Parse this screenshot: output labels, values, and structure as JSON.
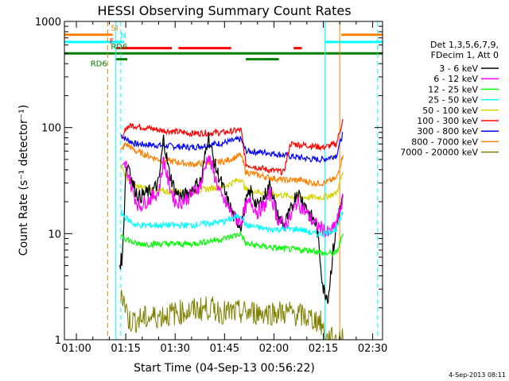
{
  "chart_data": {
    "type": "line",
    "title": "HESSI Observing Summary Count Rates",
    "xlabel": "Start Time (04-Sep-13 00:56:22)",
    "ylabel": "Count Rate (s⁻¹ detector⁻¹)",
    "y_scale": "log",
    "ylim": [
      1,
      1000
    ],
    "xlim": [
      "00:56:22",
      "02:33:00"
    ],
    "x_ticks": [
      "01:00",
      "01:15",
      "01:30",
      "01:45",
      "02:00",
      "02:15",
      "02:30"
    ],
    "y_ticks": [
      "1",
      "10",
      "100",
      "1000"
    ],
    "stamp": "4-Sep-2013 08:11",
    "legend": {
      "placement": "right",
      "header": [
        "Det 1,3,5,6,7,9,",
        "FDecim 1, Att 0"
      ],
      "entries": [
        {
          "label": "3 - 6 keV",
          "color": "#000000"
        },
        {
          "label": "6 - 12 keV",
          "color": "#ff00ff"
        },
        {
          "label": "12 - 25 keV",
          "color": "#00ff00"
        },
        {
          "label": "25 - 50 keV",
          "color": "#00ffff"
        },
        {
          "label": "50 - 100 keV",
          "color": "#d4d400"
        },
        {
          "label": "100 - 300 keV",
          "color": "#ff0000"
        },
        {
          "label": "300 - 800 keV",
          "color": "#0000ff"
        },
        {
          "label": "800 - 7000 keV",
          "color": "#ff8000"
        },
        {
          "label": "7000 - 20000 keV",
          "color": "#808000"
        }
      ]
    },
    "flag_bars": [
      {
        "label": "SI",
        "color": "#ff8000",
        "y": 750,
        "segments": [
          [
            "00:56:22",
            "01:11:00"
          ],
          [
            "02:20:30",
            "02:33:00"
          ]
        ]
      },
      {
        "label": "N",
        "color": "#00ffff",
        "y": 640,
        "segments": [
          [
            "00:56:22",
            "01:14:30"
          ],
          [
            "02:15:30",
            "02:33:00"
          ]
        ]
      },
      {
        "label": "F",
        "color": "#ff0000",
        "y": 560,
        "segments": [
          [
            "01:12:00",
            "01:29:00"
          ],
          [
            "01:31:00",
            "01:47:00"
          ],
          [
            "02:06:00",
            "02:08:30"
          ]
        ]
      },
      {
        "label": "RD6",
        "color": "#008000",
        "y": 500,
        "segments": [
          [
            "00:56:22",
            "02:33:00"
          ]
        ]
      },
      {
        "label": "RD6",
        "color": "#008000",
        "y": 440,
        "segments": [
          [
            "01:12:00",
            "01:15:30"
          ],
          [
            "01:51:30",
            "02:01:30"
          ]
        ]
      }
    ],
    "vertical_markers": [
      {
        "x": "01:09:30",
        "color": "#ff8000",
        "style": "dashed"
      },
      {
        "x": "01:13:30",
        "color": "#00ffff",
        "style": "dashed"
      },
      {
        "x": "01:12:00",
        "color": "#00ffff",
        "style": "solid"
      },
      {
        "x": "02:15:30",
        "color": "#00ffff",
        "style": "solid"
      },
      {
        "x": "02:20:00",
        "color": "#ff8000",
        "style": "solid"
      },
      {
        "x": "02:31:30",
        "color": "#00ffff",
        "style": "dashed"
      }
    ],
    "series": [
      {
        "name": "300 - 800 keV",
        "color": "#0000ff",
        "x": [
          "01:13:30",
          "01:15:00",
          "01:18:00",
          "01:25:00",
          "01:35:00",
          "01:45:00",
          "01:50:00",
          "01:51:30",
          "01:58:00",
          "02:03:00",
          "02:08:00",
          "02:12:00",
          "02:15:00",
          "02:19:00",
          "02:21:00"
        ],
        "y": [
          85,
          78,
          70,
          68,
          65,
          72,
          78,
          60,
          58,
          55,
          52,
          50,
          50,
          55,
          90
        ]
      },
      {
        "name": "100 - 300 keV",
        "color": "#ff0000",
        "x": [
          "01:14:00",
          "01:15:00",
          "01:17:00",
          "01:25:00",
          "01:35:00",
          "01:45:00",
          "01:50:00",
          "01:51:30",
          "01:58:00",
          "02:03:00",
          "02:05:00",
          "02:10:00",
          "02:15:00",
          "02:19:00",
          "02:21:00"
        ],
        "y": [
          75,
          100,
          105,
          95,
          88,
          90,
          95,
          45,
          40,
          38,
          70,
          68,
          65,
          70,
          120
        ]
      },
      {
        "name": "800 - 7000 keV",
        "color": "#ff8000",
        "x": [
          "01:13:30",
          "01:15:00",
          "01:18:00",
          "01:25:00",
          "01:35:00",
          "01:45:00",
          "01:50:00",
          "01:51:30",
          "01:58:00",
          "02:03:00",
          "02:08:00",
          "02:12:00",
          "02:15:00",
          "02:19:00",
          "02:21:00"
        ],
        "y": [
          60,
          70,
          60,
          50,
          45,
          48,
          55,
          38,
          34,
          32,
          32,
          30,
          30,
          33,
          55
        ]
      },
      {
        "name": "50 - 100 keV",
        "color": "#d4d400",
        "x": [
          "01:13:30",
          "01:15:00",
          "01:18:00",
          "01:25:00",
          "01:35:00",
          "01:45:00",
          "01:50:00",
          "01:51:30",
          "01:58:00",
          "02:03:00",
          "02:08:00",
          "02:12:00",
          "02:15:00",
          "02:19:00",
          "02:21:00"
        ],
        "y": [
          45,
          35,
          28,
          25,
          25,
          28,
          33,
          26,
          24,
          23,
          22,
          22,
          22,
          24,
          38
        ]
      },
      {
        "name": "3 - 6 keV",
        "color": "#000000",
        "x": [
          "01:13:00",
          "01:14:00",
          "01:15:00",
          "01:16:00",
          "01:17:00",
          "01:19:00",
          "01:21:00",
          "01:23:00",
          "01:25:00",
          "01:26:30",
          "01:28:00",
          "01:30:00",
          "01:32:00",
          "01:34:00",
          "01:36:00",
          "01:38:00",
          "01:40:00",
          "01:42:00",
          "01:44:00",
          "01:46:00",
          "01:48:00",
          "01:50:00",
          "01:51:30",
          "01:53:00",
          "01:55:00",
          "01:57:00",
          "01:59:00",
          "02:01:00",
          "02:03:00",
          "02:05:00",
          "02:07:00",
          "02:09:00",
          "02:11:00",
          "02:13:00",
          "02:15:00",
          "02:16:30",
          "02:18:00",
          "02:19:30",
          "02:21:00"
        ],
        "y": [
          5,
          6,
          40,
          45,
          30,
          22,
          24,
          25,
          30,
          80,
          40,
          25,
          22,
          24,
          28,
          32,
          85,
          45,
          30,
          20,
          14,
          12,
          20,
          25,
          18,
          22,
          30,
          15,
          12,
          16,
          25,
          20,
          15,
          12,
          3,
          2.5,
          7,
          14,
          22
        ]
      },
      {
        "name": "6 - 12 keV",
        "color": "#ff00ff",
        "x": [
          "01:14:00",
          "01:15:00",
          "01:16:00",
          "01:17:00",
          "01:19:00",
          "01:21:00",
          "01:23:00",
          "01:25:00",
          "01:26:30",
          "01:28:00",
          "01:30:00",
          "01:32:00",
          "01:34:00",
          "01:36:00",
          "01:38:00",
          "01:40:00",
          "01:42:00",
          "01:44:00",
          "01:46:00",
          "01:48:00",
          "01:50:00",
          "01:51:30",
          "01:53:00",
          "01:55:00",
          "01:57:00",
          "01:59:00",
          "02:01:00",
          "02:03:00",
          "02:05:00",
          "02:07:00",
          "02:09:00",
          "02:11:00",
          "02:13:00",
          "02:15:00",
          "02:16:30",
          "02:18:00",
          "02:19:30",
          "02:21:00"
        ],
        "y": [
          40,
          45,
          35,
          25,
          18,
          20,
          22,
          25,
          50,
          30,
          20,
          20,
          22,
          25,
          30,
          55,
          35,
          22,
          18,
          14,
          13,
          18,
          20,
          16,
          18,
          24,
          14,
          12,
          14,
          20,
          17,
          14,
          12,
          11,
          10,
          11,
          14,
          22
        ]
      },
      {
        "name": "25 - 50 keV",
        "color": "#00ffff",
        "x": [
          "01:13:30",
          "01:15:00",
          "01:18:00",
          "01:25:00",
          "01:35:00",
          "01:45:00",
          "01:50:00",
          "01:51:30",
          "01:58:00",
          "02:03:00",
          "02:08:00",
          "02:12:00",
          "02:15:00",
          "02:19:00",
          "02:21:00"
        ],
        "y": [
          16,
          14,
          12,
          12,
          12,
          13,
          15,
          12,
          11,
          11,
          11,
          10,
          10,
          11,
          16
        ]
      },
      {
        "name": "12 - 25 keV",
        "color": "#00ff00",
        "x": [
          "01:13:30",
          "01:15:00",
          "01:18:00",
          "01:25:00",
          "01:35:00",
          "01:45:00",
          "01:50:00",
          "01:51:30",
          "01:58:00",
          "02:03:00",
          "02:08:00",
          "02:12:00",
          "02:15:00",
          "02:19:00",
          "02:21:00"
        ],
        "y": [
          10,
          9,
          8,
          8,
          8,
          9,
          10,
          8,
          7.5,
          7.2,
          7,
          7,
          6.5,
          6.5,
          10
        ]
      },
      {
        "name": "7000 - 20000 keV",
        "color": "#808000",
        "x": [
          "01:13:30",
          "01:15:00",
          "01:16:00",
          "01:40:00",
          "01:45:00",
          "01:50:00",
          "02:00:00",
          "02:05:00",
          "02:14:00",
          "02:16:00",
          "02:19:00",
          "02:21:00"
        ],
        "y": [
          3,
          2,
          1.5,
          2,
          1.8,
          1.8,
          1.8,
          1.8,
          1.5,
          1,
          1,
          1
        ]
      }
    ]
  }
}
